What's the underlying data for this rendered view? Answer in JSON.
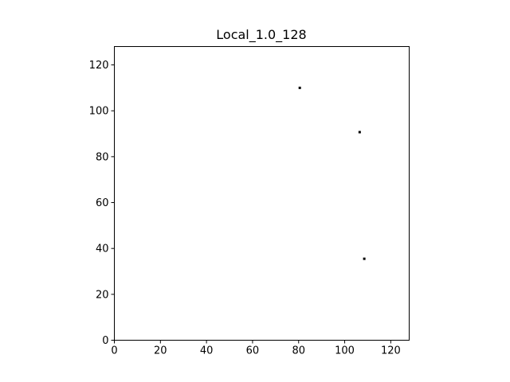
{
  "chart_data": {
    "type": "scatter",
    "title": "Local_1.0_128",
    "xlabel": "",
    "ylabel": "",
    "xlim": [
      0,
      128
    ],
    "ylim": [
      0,
      128
    ],
    "xticks": [
      0,
      20,
      40,
      60,
      80,
      100,
      120
    ],
    "yticks": [
      0,
      20,
      40,
      60,
      80,
      100,
      120
    ],
    "grid": false,
    "series": [
      {
        "color": "#000000",
        "points": [
          {
            "x": 80.5,
            "y": 110.0
          },
          {
            "x": 106.5,
            "y": 90.7
          },
          {
            "x": 108.5,
            "y": 35.5
          }
        ]
      }
    ]
  }
}
